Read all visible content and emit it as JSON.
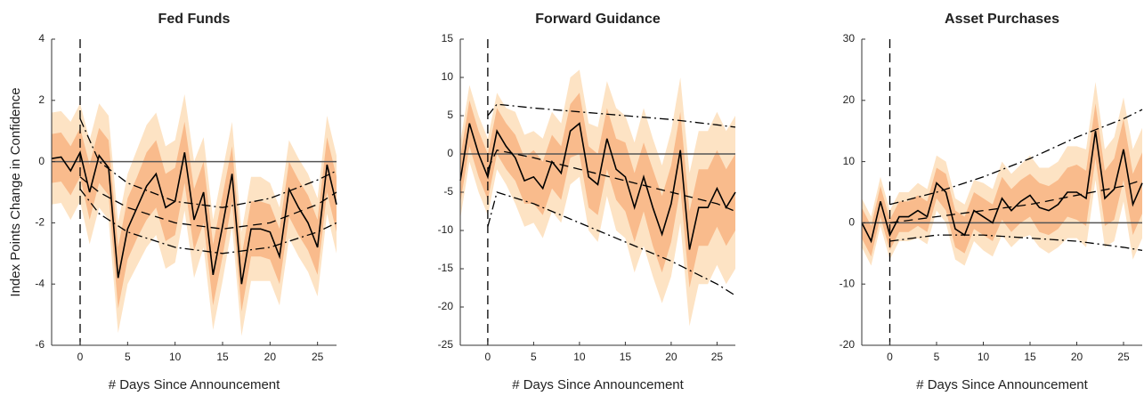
{
  "chart_data": [
    {
      "type": "line",
      "title": "Fed Funds",
      "xlabel": "# Days Since Announcement",
      "ylabel": "Index Points Change in Confidence",
      "x": [
        -3,
        -2,
        -1,
        0,
        1,
        2,
        3,
        4,
        5,
        6,
        7,
        8,
        9,
        10,
        11,
        12,
        13,
        14,
        15,
        16,
        17,
        18,
        19,
        20,
        21,
        22,
        23,
        24,
        25,
        26,
        27
      ],
      "xlim": [
        -3,
        27
      ],
      "ylim": [
        -6,
        4
      ],
      "xticks": [
        0,
        5,
        10,
        15,
        20,
        25
      ],
      "yticks": [
        -6,
        -4,
        -2,
        0,
        2,
        4
      ],
      "hline": 0,
      "vline": 0,
      "bands": [
        {
          "color": "#fde3c4",
          "errors": [
            1.5,
            1.5,
            1.6,
            1.6,
            1.7,
            1.7,
            1.7,
            1.8,
            1.8,
            1.9,
            2.0,
            2.0,
            2.0,
            2.0,
            1.9,
            1.9,
            1.8,
            1.8,
            1.8,
            1.7,
            1.7,
            1.7,
            1.7,
            1.6,
            1.6,
            1.6,
            1.6,
            1.6,
            1.6,
            1.6,
            1.6
          ]
        },
        {
          "color": "#f9bb8c",
          "errors": [
            0.8,
            0.8,
            0.8,
            0.8,
            0.9,
            0.9,
            0.9,
            1.0,
            1.0,
            1.0,
            1.1,
            1.1,
            1.1,
            1.1,
            1.0,
            1.0,
            1.0,
            1.0,
            1.0,
            0.9,
            0.9,
            0.9,
            0.9,
            0.9,
            0.9,
            0.9,
            0.9,
            0.9,
            0.9,
            0.9,
            0.9
          ]
        }
      ],
      "series": [
        {
          "color": "#000000",
          "style": "solid",
          "values": [
            0.1,
            0.15,
            -0.3,
            0.3,
            -1.0,
            0.2,
            -0.2,
            -3.8,
            -2.2,
            -1.5,
            -0.8,
            -0.4,
            -1.5,
            -1.3,
            0.3,
            -1.9,
            -1.0,
            -3.7,
            -2.1,
            -0.4,
            -4.0,
            -2.2,
            -2.2,
            -2.3,
            -3.1,
            -0.9,
            -1.5,
            -2.0,
            -2.8,
            -0.1,
            -1.4
          ]
        },
        {
          "color": "#000000",
          "style": "dashdot",
          "x": [
            0,
            2,
            5,
            10,
            15,
            20,
            25,
            27
          ],
          "values": [
            1.4,
            0.0,
            -0.7,
            -1.3,
            -1.5,
            -1.2,
            -0.6,
            -0.3
          ]
        },
        {
          "color": "#000000",
          "style": "dashed",
          "x": [
            0,
            2,
            5,
            10,
            15,
            20,
            25,
            27
          ],
          "values": [
            -0.5,
            -1.0,
            -1.5,
            -2.0,
            -2.2,
            -2.0,
            -1.4,
            -1.0
          ]
        },
        {
          "color": "#000000",
          "style": "dashdot",
          "x": [
            0,
            2,
            5,
            10,
            15,
            20,
            25,
            27
          ],
          "values": [
            -0.9,
            -1.7,
            -2.3,
            -2.8,
            -3.0,
            -2.8,
            -2.3,
            -2.0
          ]
        }
      ]
    },
    {
      "type": "line",
      "title": "Forward Guidance",
      "xlabel": "# Days Since Announcement",
      "x": [
        -3,
        -2,
        -1,
        0,
        1,
        2,
        3,
        4,
        5,
        6,
        7,
        8,
        9,
        10,
        11,
        12,
        13,
        14,
        15,
        16,
        17,
        18,
        19,
        20,
        21,
        22,
        23,
        24,
        25,
        26,
        27
      ],
      "xlim": [
        -3,
        27
      ],
      "ylim": [
        -25,
        15
      ],
      "xticks": [
        0,
        5,
        10,
        15,
        20,
        25
      ],
      "yticks": [
        -25,
        -20,
        -15,
        -10,
        -5,
        0,
        5,
        10,
        15
      ],
      "hline": 0,
      "vline": 0,
      "bands": [
        {
          "color": "#fde3c4",
          "errors": [
            5,
            5,
            5,
            5,
            5,
            5,
            6,
            6,
            6,
            6.5,
            6.5,
            6.5,
            7,
            7,
            7,
            7.5,
            7.5,
            8,
            8,
            8.5,
            9,
            9,
            9,
            9.5,
            9.5,
            10,
            10,
            10,
            10,
            10,
            10
          ]
        },
        {
          "color": "#f9bb8c",
          "errors": [
            3,
            3,
            3,
            3,
            3,
            3,
            3,
            3,
            3.5,
            3.5,
            3.5,
            3.5,
            3.5,
            4,
            4,
            4,
            4,
            4,
            4.5,
            4.5,
            4.5,
            5,
            5,
            5,
            5,
            5,
            5,
            5,
            5,
            5,
            5
          ]
        }
      ],
      "series": [
        {
          "color": "#000000",
          "style": "solid",
          "values": [
            -3.5,
            4,
            0,
            -3,
            3,
            1,
            -0.5,
            -3.5,
            -3,
            -4.5,
            -1,
            -2.5,
            3,
            4,
            -3,
            -4,
            2,
            -2,
            -3,
            -7,
            -3,
            -7,
            -10.5,
            -6.5,
            0.5,
            -12.5,
            -7,
            -7,
            -4.5,
            -7,
            -5
          ]
        },
        {
          "color": "#000000",
          "style": "dashdot",
          "x": [
            0,
            1,
            5,
            10,
            15,
            20,
            25,
            27
          ],
          "values": [
            5,
            6.5,
            6,
            5.5,
            5,
            4.5,
            3.8,
            3.5
          ]
        },
        {
          "color": "#000000",
          "style": "dashed",
          "x": [
            0,
            1,
            5,
            10,
            15,
            20,
            25,
            27
          ],
          "values": [
            -2,
            0.5,
            -0.5,
            -2,
            -3.5,
            -5,
            -6.5,
            -7.5
          ]
        },
        {
          "color": "#000000",
          "style": "dashdot",
          "x": [
            0,
            1,
            5,
            10,
            15,
            20,
            25,
            27
          ],
          "values": [
            -9.5,
            -5,
            -6.5,
            -9,
            -11.5,
            -14,
            -17,
            -18.5
          ]
        }
      ]
    },
    {
      "type": "line",
      "title": "Asset Purchases",
      "xlabel": "# Days Since Announcement",
      "x": [
        -3,
        -2,
        -1,
        0,
        1,
        2,
        3,
        4,
        5,
        6,
        7,
        8,
        9,
        10,
        11,
        12,
        13,
        14,
        15,
        16,
        17,
        18,
        19,
        20,
        21,
        22,
        23,
        24,
        25,
        26,
        27
      ],
      "xlim": [
        -3,
        27
      ],
      "ylim": [
        -20,
        30
      ],
      "xticks": [
        0,
        5,
        10,
        15,
        20,
        25
      ],
      "yticks": [
        -20,
        -10,
        0,
        10,
        20,
        30
      ],
      "hline": 0,
      "vline": 0,
      "bands": [
        {
          "color": "#fde3c4",
          "errors": [
            4,
            4,
            4,
            4,
            4,
            4,
            4.5,
            4.5,
            4.5,
            5,
            5,
            5,
            5,
            5.5,
            5.5,
            6,
            6,
            6,
            6.5,
            6.5,
            7,
            7,
            7.5,
            7.5,
            8,
            8,
            8,
            8.5,
            8.5,
            9,
            9
          ]
        },
        {
          "color": "#f9bb8c",
          "errors": [
            2.5,
            2.5,
            2.5,
            2.5,
            2.5,
            2.5,
            2.5,
            2.5,
            2.5,
            3,
            3,
            3,
            3,
            3,
            3,
            3.5,
            3.5,
            3.5,
            3.5,
            4,
            4,
            4,
            4,
            4.5,
            4.5,
            4.5,
            4.5,
            5,
            5,
            5,
            5
          ]
        }
      ],
      "series": [
        {
          "color": "#000000",
          "style": "solid",
          "values": [
            0,
            -3,
            3.5,
            -2,
            1,
            1,
            2,
            1,
            6.5,
            5,
            -1,
            -2,
            2,
            1,
            0,
            4,
            2,
            3.5,
            4.5,
            2.5,
            2,
            3,
            5,
            5,
            4,
            15,
            4,
            5.5,
            12,
            3,
            6.5
          ]
        },
        {
          "color": "#000000",
          "style": "dashdot",
          "x": [
            0,
            5,
            10,
            15,
            20,
            25,
            27
          ],
          "values": [
            3,
            5,
            7.5,
            10.5,
            14,
            17,
            18.5
          ]
        },
        {
          "color": "#000000",
          "style": "dashed",
          "x": [
            0,
            5,
            10,
            15,
            20,
            25,
            27
          ],
          "values": [
            0,
            1,
            2,
            3,
            4.5,
            6,
            7
          ]
        },
        {
          "color": "#000000",
          "style": "dashdot",
          "x": [
            0,
            5,
            10,
            15,
            20,
            25,
            27
          ],
          "values": [
            -3,
            -2,
            -2,
            -2.5,
            -3,
            -4,
            -4.5
          ]
        }
      ]
    }
  ]
}
